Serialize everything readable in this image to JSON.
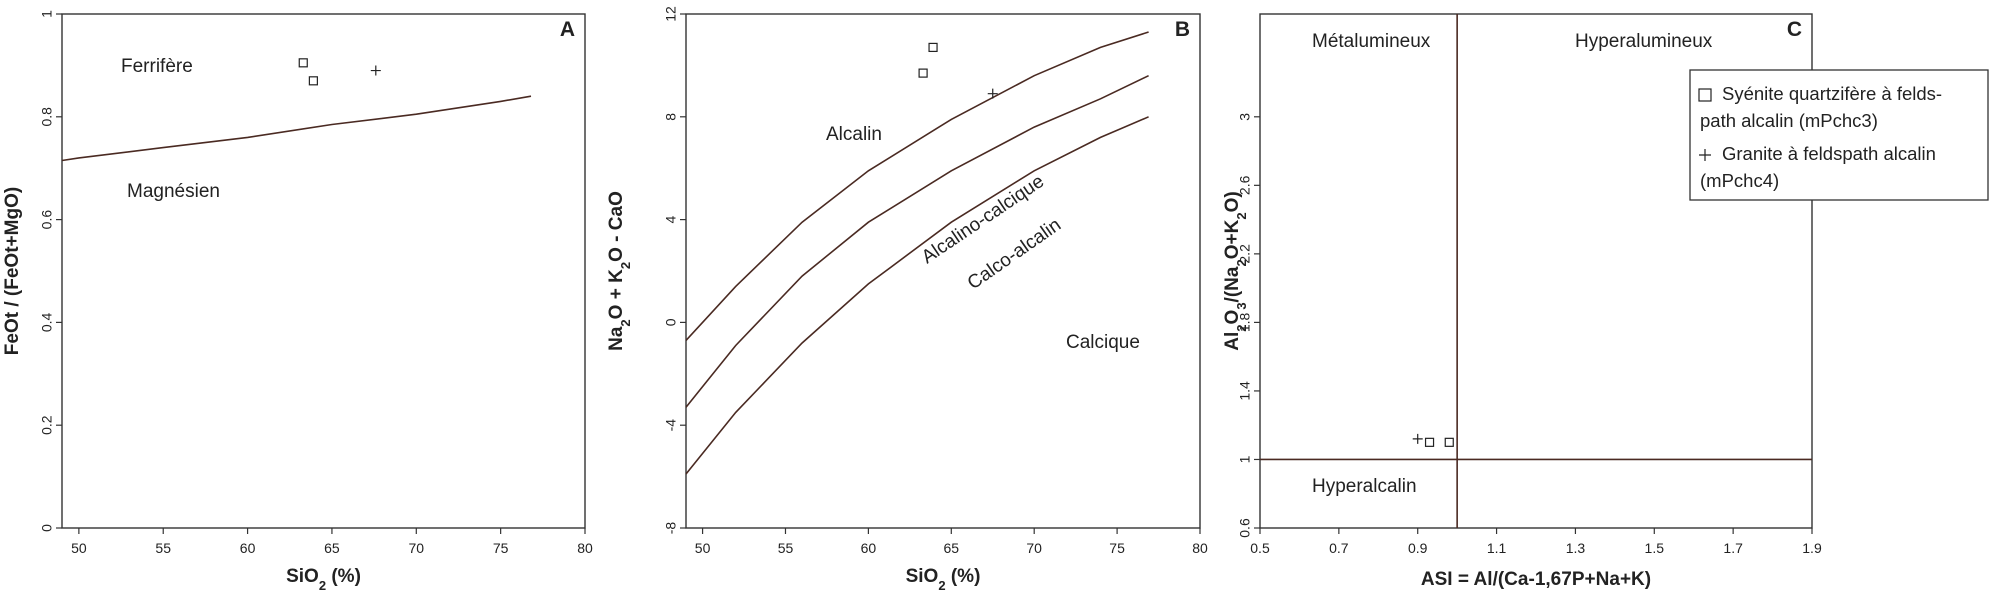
{
  "chart_data": [
    {
      "type": "scatter",
      "panel": "A",
      "xlabel": "SiO₂ (%)",
      "ylabel": "FeOt / (FeOt+MgO)",
      "xlim": [
        49,
        80
      ],
      "ylim": [
        0,
        1
      ],
      "xticks": [
        "50",
        "55",
        "60",
        "65",
        "70",
        "75",
        "80"
      ],
      "yticks": [
        "0",
        "0.2",
        "0.4",
        "0.6",
        "0.8",
        "1"
      ],
      "regions": [
        "Ferrifère",
        "Magnésien"
      ],
      "boundary": [
        [
          49,
          0.715
        ],
        [
          50,
          0.72
        ],
        [
          55,
          0.74
        ],
        [
          60,
          0.76
        ],
        [
          65,
          0.785
        ],
        [
          70,
          0.805
        ],
        [
          75,
          0.83
        ],
        [
          76.8,
          0.84
        ]
      ],
      "series": [
        {
          "name": "mPchc3",
          "marker": "square",
          "points": [
            [
              63.3,
              0.905
            ],
            [
              63.9,
              0.87
            ]
          ]
        },
        {
          "name": "mPchc4",
          "marker": "plus",
          "points": [
            [
              67.6,
              0.89
            ]
          ]
        }
      ]
    },
    {
      "type": "scatter",
      "panel": "B",
      "xlabel": "SiO₂ (%)",
      "ylabel": "Na₂O + K₂O - CaO",
      "xlim": [
        49,
        80
      ],
      "ylim": [
        -8,
        12
      ],
      "xticks": [
        "50",
        "55",
        "60",
        "65",
        "70",
        "75",
        "80"
      ],
      "yticks": [
        "-8",
        "-4",
        "0",
        "4",
        "8",
        "12"
      ],
      "regions": [
        "Alcalin",
        "Alcalino-calcique",
        "Calco-alcalin",
        "Calcique"
      ],
      "boundaries": [
        [
          [
            49,
            -0.7
          ],
          [
            52,
            1.4
          ],
          [
            56,
            3.9
          ],
          [
            60,
            5.9
          ],
          [
            65,
            7.9
          ],
          [
            70,
            9.6
          ],
          [
            74,
            10.7
          ],
          [
            76.9,
            11.3
          ]
        ],
        [
          [
            49,
            -3.3
          ],
          [
            52,
            -0.9
          ],
          [
            56,
            1.8
          ],
          [
            60,
            3.9
          ],
          [
            65,
            5.9
          ],
          [
            70,
            7.6
          ],
          [
            74,
            8.7
          ],
          [
            76.9,
            9.6
          ]
        ],
        [
          [
            49,
            -5.9
          ],
          [
            52,
            -3.5
          ],
          [
            56,
            -0.8
          ],
          [
            60,
            1.5
          ],
          [
            65,
            3.9
          ],
          [
            70,
            5.9
          ],
          [
            74,
            7.2
          ],
          [
            76.9,
            8.0
          ]
        ]
      ],
      "series": [
        {
          "name": "mPchc3",
          "marker": "square",
          "points": [
            [
              63.3,
              9.7
            ],
            [
              63.9,
              10.7
            ]
          ]
        },
        {
          "name": "mPchc4",
          "marker": "plus",
          "points": [
            [
              67.5,
              8.9
            ]
          ]
        }
      ]
    },
    {
      "type": "scatter",
      "panel": "C",
      "xlabel": "ASI = Al/(Ca-1,67P+Na+K)",
      "ylabel": "Al₂O₃/(Na₂O+K₂O)",
      "xlim": [
        0.5,
        1.9
      ],
      "ylim": [
        0.6,
        3.6
      ],
      "xticks": [
        "0.5",
        "0.7",
        "0.9",
        "1.1",
        "1.3",
        "1.5",
        "1.7",
        "1.9"
      ],
      "yticks": [
        "0.6",
        "1",
        "1.4",
        "1.8",
        "2.2",
        "2.6",
        "3"
      ],
      "regions": [
        "Métalumineux",
        "Hyperalumineux",
        "Hyperalcalin"
      ],
      "dividers": {
        "vertical_x": 1.0,
        "horizontal_y": 1.0
      },
      "series": [
        {
          "name": "mPchc3",
          "marker": "square",
          "points": [
            [
              0.93,
              1.1
            ],
            [
              0.98,
              1.1
            ]
          ]
        },
        {
          "name": "mPchc4",
          "marker": "plus",
          "points": [
            [
              0.9,
              1.12
            ]
          ]
        }
      ],
      "legend": [
        {
          "marker": "square",
          "line1": "Syénite quartzifère à felds-",
          "line2": "path alcalin (mPchc3)"
        },
        {
          "marker": "plus",
          "line1": "Granite à feldspath alcalin",
          "line2": "(mPchc4)"
        }
      ],
      "legend_position": "top-right"
    }
  ]
}
